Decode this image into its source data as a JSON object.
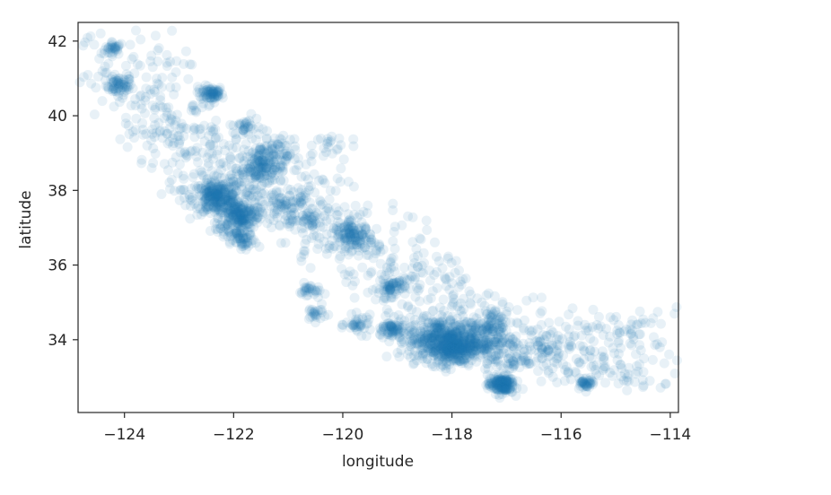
{
  "chart_data": {
    "type": "scatter",
    "title": "",
    "xlabel": "longitude",
    "ylabel": "latitude",
    "xlim": [
      -124.85,
      -113.85
    ],
    "ylim": [
      32.05,
      42.5
    ],
    "xticks": [
      -124,
      -122,
      -120,
      -118,
      -116,
      -114
    ],
    "yticks": [
      34,
      36,
      38,
      40,
      42
    ],
    "xtick_labels": [
      "−124",
      "−122",
      "−120",
      "−118",
      "−116",
      "−114"
    ],
    "ytick_labels": [
      "34",
      "36",
      "38",
      "40",
      "42"
    ],
    "grid": false,
    "legend": "none",
    "point_color": "#1f77b4",
    "point_alpha": 0.1,
    "clusters": [
      {
        "lon": -124.2,
        "lat": 41.8,
        "spread": 0.08,
        "n": 30
      },
      {
        "lon": -124.1,
        "lat": 40.8,
        "spread": 0.12,
        "n": 60
      },
      {
        "lon": -122.4,
        "lat": 40.6,
        "spread": 0.1,
        "n": 70
      },
      {
        "lon": -121.8,
        "lat": 39.7,
        "spread": 0.15,
        "n": 40
      },
      {
        "lon": -121.5,
        "lat": 38.6,
        "spread": 0.22,
        "n": 160
      },
      {
        "lon": -122.3,
        "lat": 37.8,
        "spread": 0.22,
        "n": 260
      },
      {
        "lon": -121.9,
        "lat": 37.35,
        "spread": 0.18,
        "n": 180
      },
      {
        "lon": -122.0,
        "lat": 36.9,
        "spread": 0.15,
        "n": 50
      },
      {
        "lon": -121.8,
        "lat": 36.6,
        "spread": 0.12,
        "n": 40
      },
      {
        "lon": -121.0,
        "lat": 37.6,
        "spread": 0.25,
        "n": 80
      },
      {
        "lon": -120.6,
        "lat": 37.2,
        "spread": 0.2,
        "n": 40
      },
      {
        "lon": -119.8,
        "lat": 36.75,
        "spread": 0.18,
        "n": 120
      },
      {
        "lon": -119.1,
        "lat": 35.4,
        "spread": 0.12,
        "n": 60
      },
      {
        "lon": -120.6,
        "lat": 35.3,
        "spread": 0.1,
        "n": 30
      },
      {
        "lon": -120.5,
        "lat": 34.7,
        "spread": 0.1,
        "n": 25
      },
      {
        "lon": -119.7,
        "lat": 34.4,
        "spread": 0.12,
        "n": 40
      },
      {
        "lon": -119.1,
        "lat": 34.25,
        "spread": 0.14,
        "n": 70
      },
      {
        "lon": -118.2,
        "lat": 34.0,
        "spread": 0.3,
        "n": 450
      },
      {
        "lon": -117.9,
        "lat": 33.75,
        "spread": 0.2,
        "n": 200
      },
      {
        "lon": -117.4,
        "lat": 34.0,
        "spread": 0.25,
        "n": 150
      },
      {
        "lon": -117.1,
        "lat": 32.8,
        "spread": 0.12,
        "n": 180
      },
      {
        "lon": -116.9,
        "lat": 33.5,
        "spread": 0.2,
        "n": 50
      },
      {
        "lon": -116.3,
        "lat": 33.8,
        "spread": 0.15,
        "n": 40
      },
      {
        "lon": -115.55,
        "lat": 32.85,
        "spread": 0.08,
        "n": 40
      },
      {
        "lon": -117.2,
        "lat": 34.5,
        "spread": 0.15,
        "n": 40
      },
      {
        "lon": -121.3,
        "lat": 39.1,
        "spread": 0.2,
        "n": 60
      },
      {
        "lon": -120.3,
        "lat": 39.2,
        "spread": 0.2,
        "n": 25
      }
    ],
    "scatter_backbone": [
      [
        -124.2,
        41.8
      ],
      [
        -123.5,
        40.5
      ],
      [
        -123.0,
        39.5
      ],
      [
        -122.5,
        38.5
      ],
      [
        -121.0,
        38.0
      ],
      [
        -120.0,
        37.0
      ],
      [
        -119.0,
        36.0
      ],
      [
        -118.5,
        35.0
      ],
      [
        -117.0,
        34.3
      ],
      [
        -116.0,
        33.8
      ],
      [
        -115.0,
        33.5
      ],
      [
        -114.5,
        34.0
      ]
    ]
  }
}
